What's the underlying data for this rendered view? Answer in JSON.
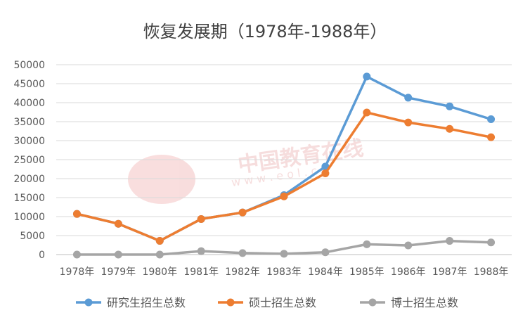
{
  "chart_data": {
    "type": "line",
    "title": "恢复发展期（1978年-1988年）",
    "categories": [
      "1978年",
      "1979年",
      "1980年",
      "1981年",
      "1982年",
      "1983年",
      "1984年",
      "1985年",
      "1986年",
      "1987年",
      "1988年"
    ],
    "ylim": [
      0,
      50000
    ],
    "yticks": [
      "0",
      "5000",
      "10000",
      "15000",
      "20000",
      "25000",
      "30000",
      "35000",
      "40000",
      "45000",
      "50000"
    ],
    "grid": true,
    "legend_position": "bottom",
    "series": [
      {
        "name": "研究生招生总数",
        "color": "#5B9BD5",
        "values": [
          10708,
          8110,
          3616,
          9363,
          11080,
          15642,
          23181,
          46871,
          41310,
          39017,
          35645
        ]
      },
      {
        "name": "硕士招生总数",
        "color": "#ED7D31",
        "values": [
          10708,
          8110,
          3616,
          9363,
          11080,
          15320,
          21400,
          37400,
          34800,
          33100,
          30900
        ]
      },
      {
        "name": "博士招生总数",
        "color": "#A5A5A5",
        "values": [
          0,
          0,
          0,
          900,
          400,
          200,
          600,
          2700,
          2400,
          3600,
          3200
        ]
      }
    ]
  },
  "watermark": {
    "text": "中国教育在线",
    "url": "w w w . e o l . c n"
  }
}
